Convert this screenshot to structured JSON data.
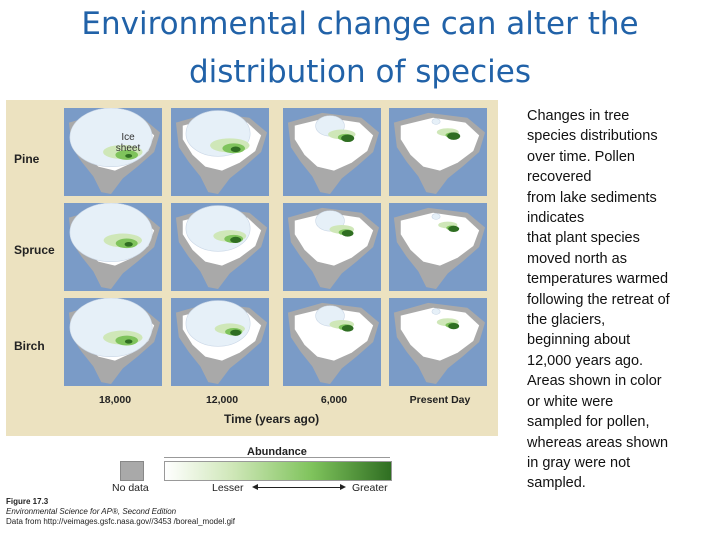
{
  "title": {
    "line1": "Environmental change can alter the",
    "line2": "distribution of species"
  },
  "figure": {
    "rows": [
      "Pine",
      "Spruce",
      "Birch"
    ],
    "columns": [
      "18,000",
      "12,000",
      "6,000",
      "Present Day"
    ],
    "ice_label": "Ice sheet",
    "time_axis_label": "Time (years ago)",
    "legend": {
      "title": "Abundance",
      "no_data": "No data",
      "lesser": "Lesser",
      "greater": "Greater"
    },
    "colors": {
      "ocean": "#7a9bc7",
      "ice": "#e6f0f8",
      "no_data_land": "#a9a9a9",
      "low": "#cfe7b8",
      "mid": "#7fc35c",
      "high": "#2f6e22",
      "background": "#ece2c0"
    },
    "caption": {
      "figure_number": "Figure 17.3",
      "book": "Environmental Science for AP®, Second Edition",
      "source": "Data from http://veimages.gsfc.nasa.gov//3453 /boreal_model.gif"
    }
  },
  "side_text": [
    "Changes in tree",
    "species distributions",
    "over time. Pollen",
    "recovered",
    "from lake sediments",
    "indicates",
    "that plant species",
    "moved north as",
    "temperatures warmed",
    "following the retreat of",
    "the glaciers,",
    "beginning about",
    "12,000 years ago.",
    "Areas shown in color",
    "or white were",
    "sampled for pollen,",
    "whereas areas shown",
    "in gray were not",
    "sampled."
  ]
}
